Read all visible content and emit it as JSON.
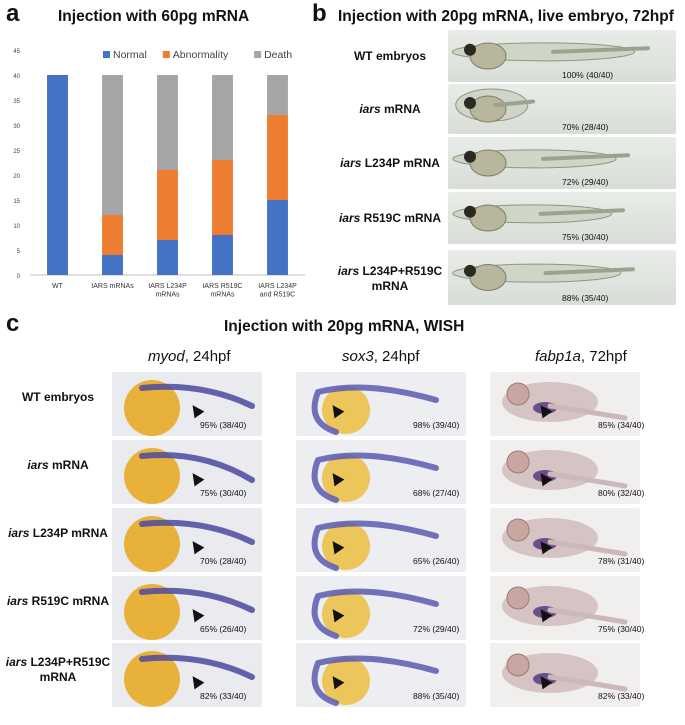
{
  "panel_a": {
    "letter": "a",
    "title": "Injection with 60pg mRNA"
  },
  "panel_b": {
    "letter": "b",
    "title": "Injection with 20pg mRNA, live embryo, 72hpf",
    "rows": [
      {
        "label_pre": "",
        "label_it": "",
        "label_post": "WT embryos",
        "pct": "100% (40/40)"
      },
      {
        "label_pre": "",
        "label_it": "iars",
        "label_post": " mRNA",
        "pct": "70% (28/40)"
      },
      {
        "label_pre": "",
        "label_it": "iars",
        "label_post": " L234P mRNA",
        "pct": "72% (29/40)"
      },
      {
        "label_pre": "",
        "label_it": "iars",
        "label_post": " R519C mRNA",
        "pct": "75% (30/40)"
      },
      {
        "label_pre": "",
        "label_it": "iars",
        "label_post": " L234P+R519C mRNA",
        "pct": "88% (35/40)"
      }
    ]
  },
  "panel_c": {
    "letter": "c",
    "title": "Injection with 20pg mRNA, WISH",
    "columns": [
      {
        "gene": "myod",
        "stage": ", 24hpf"
      },
      {
        "gene": "sox3",
        "stage": ", 24hpf"
      },
      {
        "gene": "fabp1a",
        "stage": ", 72hpf"
      }
    ],
    "rows": [
      {
        "label_it": "",
        "label_post": "WT embryos",
        "pcts": [
          "95% (38/40)",
          "98% (39/40)",
          "85% (34/40)"
        ]
      },
      {
        "label_it": "iars",
        "label_post": " mRNA",
        "pcts": [
          "75% (30/40)",
          "68% (27/40)",
          "80% (32/40)"
        ]
      },
      {
        "label_it": "iars",
        "label_post": " L234P mRNA",
        "pcts": [
          "70% (28/40)",
          "65% (26/40)",
          "78% (31/40)"
        ]
      },
      {
        "label_it": "iars",
        "label_post": " R519C mRNA",
        "pcts": [
          "65% (26/40)",
          "72% (29/40)",
          "75% (30/40)"
        ]
      },
      {
        "label_it": "iars",
        "label_post": " L234P+R519C mRNA",
        "pcts": [
          "82% (33/40)",
          "88% (35/40)",
          "82% (33/40)"
        ]
      }
    ]
  },
  "chart_data": {
    "type": "bar",
    "stacked": true,
    "categories": [
      "WT",
      "IARS mRNAs",
      "IARS L234P mRNAs",
      "IARS R519C mRNAs",
      "IARS L234P and R519C mRNAs"
    ],
    "series": [
      {
        "name": "Normal",
        "values": [
          40,
          4,
          7,
          8,
          15
        ],
        "color": "#4472c4"
      },
      {
        "name": "Abnormality",
        "values": [
          0,
          8,
          14,
          15,
          17
        ],
        "color": "#ed7d31"
      },
      {
        "name": "Death",
        "values": [
          0,
          28,
          19,
          17,
          8
        ],
        "color": "#a5a5a5"
      }
    ],
    "ylim": [
      0,
      45
    ],
    "yticks": [
      "0",
      "5",
      "10",
      "15",
      "20",
      "25",
      "30",
      "35",
      "40",
      "45"
    ],
    "legend_position": "top",
    "grid": false
  }
}
